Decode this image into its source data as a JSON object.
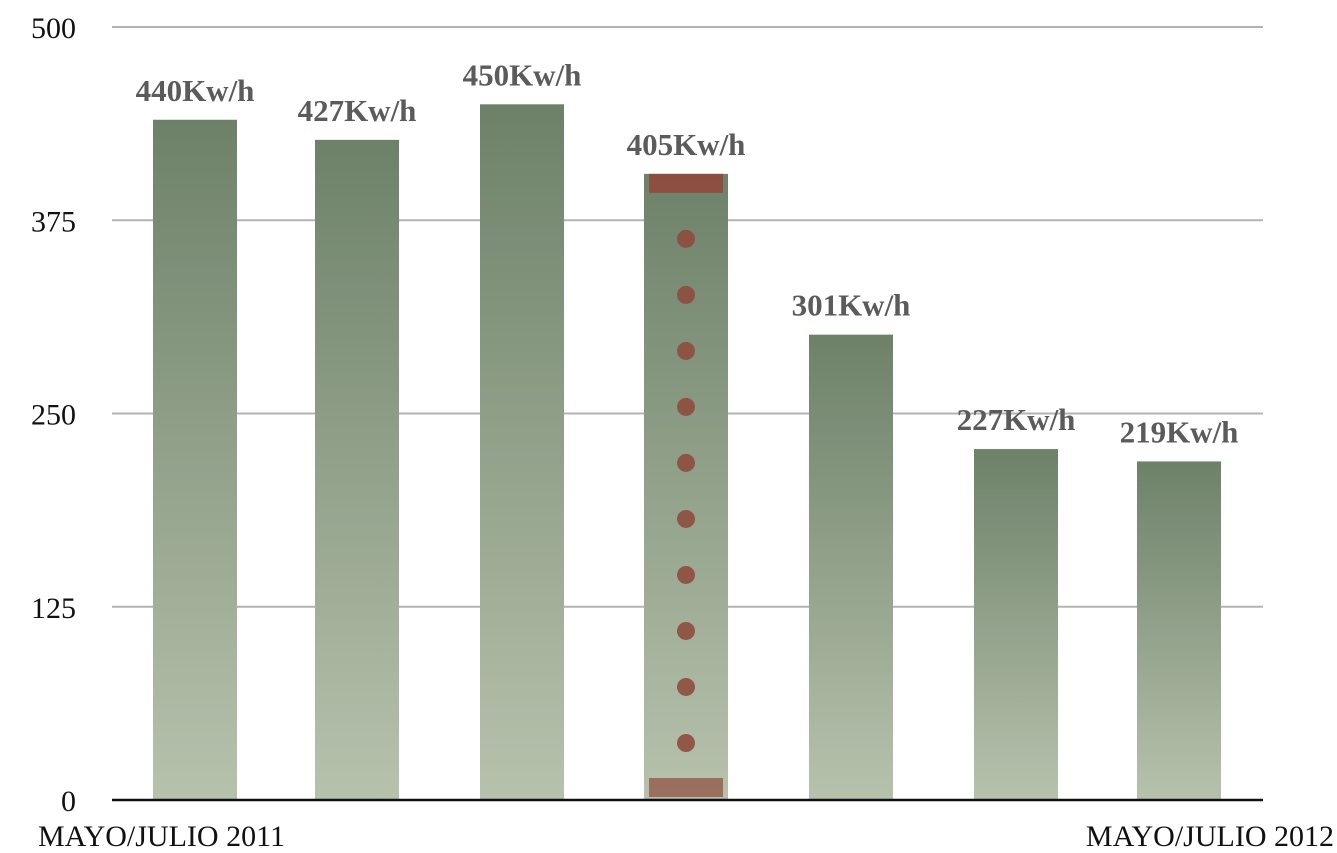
{
  "chart_data": {
    "type": "bar",
    "categories": [
      "",
      "",
      "",
      "",
      "",
      "",
      ""
    ],
    "values": [
      440,
      427,
      450,
      405,
      301,
      227,
      219
    ],
    "data_labels": [
      "440Kw/h",
      "427Kw/h",
      "450Kw/h",
      "405Kw/h",
      "301Kw/h",
      "227Kw/h",
      "219Kw/h"
    ],
    "highlight_index": 3,
    "y_ticks": [
      0,
      125,
      250,
      375,
      500
    ],
    "ylim": [
      0,
      500
    ],
    "grid": true,
    "x_start_label": "MAYO/JULIO 2011",
    "x_end_label": "MAYO/JULIO 2012",
    "colors": {
      "bar_top": "#6d8169",
      "bar_bottom": "#b7c2ad",
      "highlight_marker": "#8e4c3d",
      "gridline": "#b3b3b3",
      "axis": "#111111",
      "label": "#5b5b5b"
    }
  }
}
